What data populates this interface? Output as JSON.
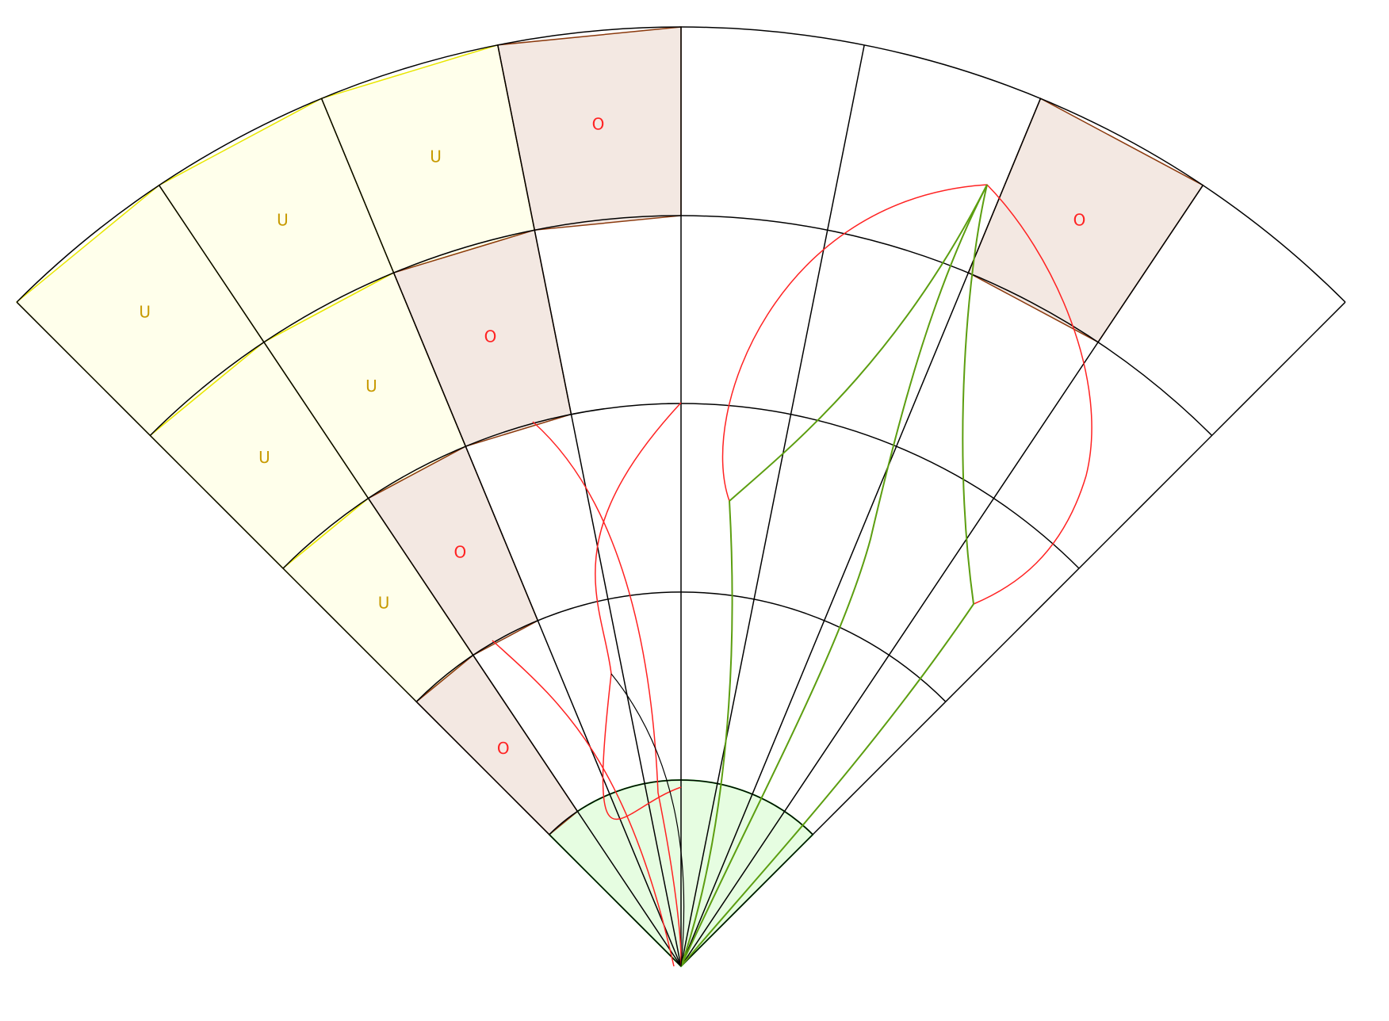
{
  "colors": {
    "grid": "#000000",
    "yellow_fill": "#ffffeb",
    "yellow_stroke": "#e8e600",
    "brown_fill": "#f3e8e2",
    "brown_stroke": "#8b3a0e",
    "green_fill": "#e6fde1",
    "green_stroke": "#33cc33",
    "red_curve": "#ff2222",
    "olive_curve": "#5c9e10",
    "u_label": "#c79a00",
    "o_label": "#ff2222"
  },
  "labels": {
    "u": "U",
    "o": "O"
  },
  "u_cells": [
    {
      "ring": 4,
      "sector": 0
    },
    {
      "ring": 4,
      "sector": 1
    },
    {
      "ring": 4,
      "sector": 2
    },
    {
      "ring": 3,
      "sector": 0
    },
    {
      "ring": 3,
      "sector": 1
    },
    {
      "ring": 2,
      "sector": 0
    }
  ],
  "o_cells": [
    {
      "ring": 4,
      "sector": 3
    },
    {
      "ring": 3,
      "sector": 2
    },
    {
      "ring": 2,
      "sector": 1
    },
    {
      "ring": 1,
      "sector": 0
    },
    {
      "ring": 4,
      "sector": 6,
      "right_side": true
    }
  ]
}
